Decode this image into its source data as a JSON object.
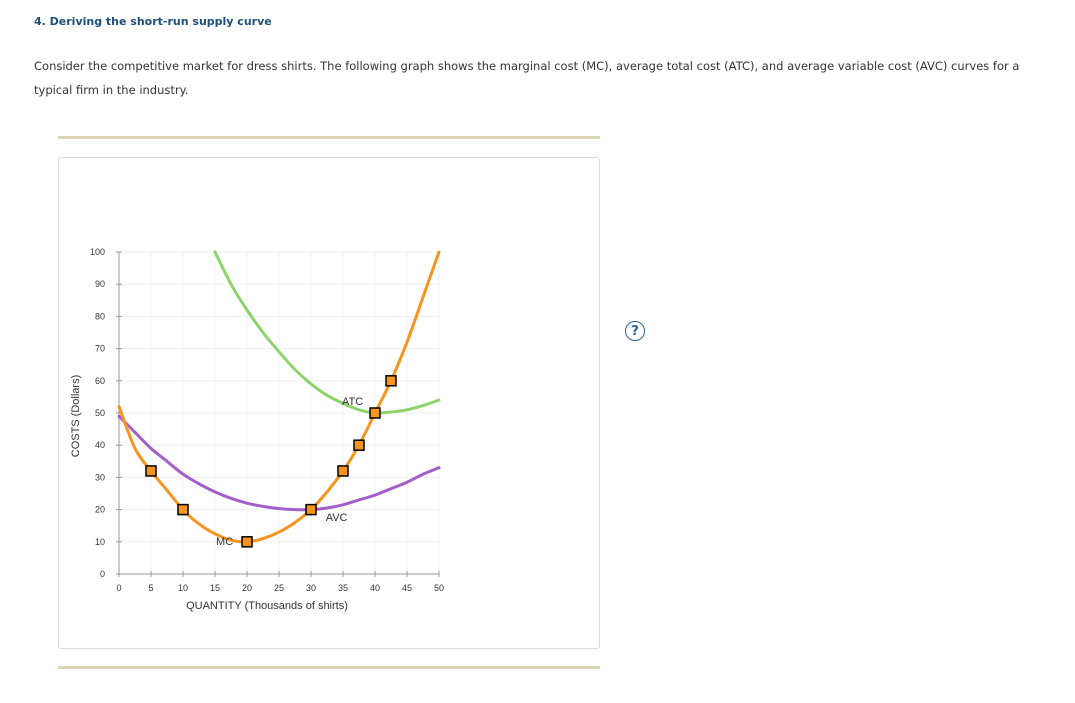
{
  "question": {
    "title": "4. Deriving the short-run supply curve",
    "intro": "Consider the competitive market for dress shirts. The following graph shows the marginal cost (MC), average total cost (ATC), and average variable cost (AVC) curves for a typical firm in the industry."
  },
  "help_icon": {
    "glyph": "?",
    "icon": "help-icon"
  },
  "colors": {
    "mc": "#f7941e",
    "atc": "#8dd36b",
    "avc": "#a45ec9",
    "point_fill": "#f7941e",
    "point_stroke": "#000000",
    "title": "#1e4f7a"
  },
  "chart_data": {
    "type": "line",
    "xlabel": "QUANTITY (Thousands of shirts)",
    "ylabel": "COSTS (Dollars)",
    "xlim": [
      0,
      50
    ],
    "ylim": [
      0,
      100
    ],
    "xticks": [
      0,
      5,
      10,
      15,
      20,
      25,
      30,
      35,
      40,
      45,
      50
    ],
    "yticks": [
      0,
      10,
      20,
      30,
      40,
      50,
      60,
      70,
      80,
      90,
      100
    ],
    "grid": true,
    "series": [
      {
        "name": "MC",
        "points": [
          [
            0,
            52
          ],
          [
            2.5,
            39
          ],
          [
            5,
            32
          ],
          [
            7.5,
            26
          ],
          [
            10,
            20
          ],
          [
            12.5,
            15.5
          ],
          [
            15,
            12.5
          ],
          [
            17.5,
            10.5
          ],
          [
            20,
            10
          ],
          [
            22.5,
            11
          ],
          [
            25,
            13
          ],
          [
            27.5,
            16
          ],
          [
            30,
            20
          ],
          [
            32.5,
            25.5
          ],
          [
            35,
            32
          ],
          [
            37.5,
            40
          ],
          [
            40,
            50
          ],
          [
            42.5,
            60
          ],
          [
            45,
            72
          ],
          [
            47.5,
            86
          ],
          [
            50,
            100
          ]
        ],
        "markers": [
          [
            5,
            32
          ],
          [
            10,
            20
          ],
          [
            20,
            10
          ],
          [
            30,
            20
          ],
          [
            35,
            32
          ],
          [
            37.5,
            40
          ],
          [
            40,
            50
          ],
          [
            42.5,
            60
          ]
        ]
      },
      {
        "name": "ATC",
        "points": [
          [
            15,
            100
          ],
          [
            17.5,
            90
          ],
          [
            20,
            82
          ],
          [
            22.5,
            75
          ],
          [
            25,
            69
          ],
          [
            27.5,
            63.5
          ],
          [
            30,
            59
          ],
          [
            32.5,
            55.5
          ],
          [
            35,
            53
          ],
          [
            37.5,
            51
          ],
          [
            40,
            50
          ],
          [
            42.5,
            50.3
          ],
          [
            45,
            51
          ],
          [
            47.5,
            52.3
          ],
          [
            50,
            54
          ]
        ]
      },
      {
        "name": "AVC",
        "points": [
          [
            0,
            49
          ],
          [
            2.5,
            44
          ],
          [
            5,
            39
          ],
          [
            7.5,
            35
          ],
          [
            10,
            31
          ],
          [
            12.5,
            28
          ],
          [
            15,
            25.5
          ],
          [
            17.5,
            23.5
          ],
          [
            20,
            22
          ],
          [
            22.5,
            21
          ],
          [
            25,
            20.3
          ],
          [
            27.5,
            20
          ],
          [
            30,
            20
          ],
          [
            32.5,
            20.5
          ],
          [
            35,
            21.5
          ],
          [
            37.5,
            23
          ],
          [
            40,
            24.5
          ],
          [
            42.5,
            26.5
          ],
          [
            45,
            28.5
          ],
          [
            47.5,
            31
          ],
          [
            50,
            33
          ]
        ]
      }
    ]
  }
}
